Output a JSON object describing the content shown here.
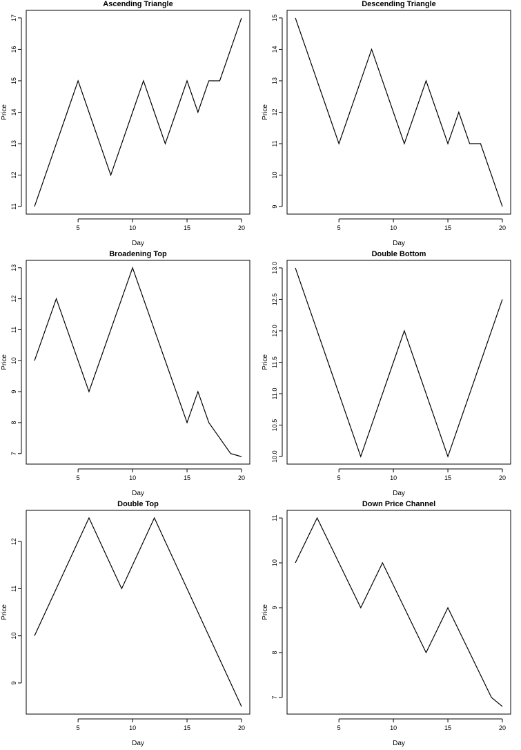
{
  "chart_data": [
    {
      "type": "line",
      "title": "Ascending Triangle",
      "xlabel": "Day",
      "ylabel": "Price",
      "x": [
        1,
        2,
        3,
        4,
        5,
        6,
        7,
        8,
        9,
        10,
        11,
        12,
        13,
        14,
        15,
        16,
        17,
        18,
        19,
        20
      ],
      "series": [
        {
          "values": [
            11,
            12,
            13,
            14,
            15,
            14,
            13,
            12,
            13,
            14,
            15,
            14,
            13,
            14,
            15,
            14,
            15,
            15,
            16,
            17
          ]
        }
      ],
      "xticks": [
        5,
        10,
        15,
        20
      ],
      "yticks": [
        11,
        12,
        13,
        14,
        15,
        16,
        17
      ],
      "xlim": [
        0.24,
        20.76
      ],
      "ylim": [
        10.76,
        17.24
      ],
      "grid": false,
      "color": "#000000"
    },
    {
      "type": "line",
      "title": "Descending Triangle",
      "xlabel": "Day",
      "ylabel": "Price",
      "x": [
        1,
        2,
        3,
        4,
        5,
        6,
        7,
        8,
        9,
        10,
        11,
        12,
        13,
        14,
        15,
        16,
        17,
        18,
        19,
        20
      ],
      "series": [
        {
          "values": [
            15,
            14,
            13,
            12,
            11,
            12,
            13,
            14,
            13,
            12,
            11,
            12,
            13,
            12,
            11,
            12,
            11,
            11,
            10,
            9
          ]
        }
      ],
      "xticks": [
        5,
        10,
        15,
        20
      ],
      "yticks": [
        9,
        10,
        11,
        12,
        13,
        14,
        15
      ],
      "xlim": [
        0.24,
        20.76
      ],
      "ylim": [
        8.76,
        15.24
      ],
      "grid": false,
      "color": "#000000"
    },
    {
      "type": "line",
      "title": "Broadening Top",
      "xlabel": "Day",
      "ylabel": "Price",
      "x": [
        1,
        2,
        3,
        4,
        5,
        6,
        7,
        8,
        9,
        10,
        11,
        12,
        13,
        14,
        15,
        16,
        17,
        18,
        19,
        20
      ],
      "series": [
        {
          "values": [
            10,
            11,
            12,
            11,
            10,
            9,
            10,
            11,
            12,
            13,
            12,
            11,
            10,
            9,
            8,
            9,
            8,
            7.5,
            7,
            6.9
          ]
        }
      ],
      "xticks": [
        5,
        10,
        15,
        20
      ],
      "yticks": [
        7,
        8,
        9,
        10,
        11,
        12,
        13
      ],
      "xlim": [
        0.24,
        20.76
      ],
      "ylim": [
        6.66,
        13.24
      ],
      "grid": false,
      "color": "#000000"
    },
    {
      "type": "line",
      "title": "Double Bottom",
      "xlabel": "Day",
      "ylabel": "Price",
      "x": [
        1,
        2,
        3,
        4,
        5,
        6,
        7,
        8,
        9,
        10,
        11,
        12,
        13,
        14,
        15,
        16,
        17,
        18,
        19,
        20
      ],
      "series": [
        {
          "values": [
            13,
            12.5,
            12,
            11.5,
            11,
            10.5,
            10,
            10.5,
            11,
            11.5,
            12,
            11.5,
            11,
            10.5,
            10,
            10.5,
            11,
            11.5,
            12,
            12.5
          ]
        }
      ],
      "xticks": [
        5,
        10,
        15,
        20
      ],
      "yticks": [
        10.0,
        10.5,
        11.0,
        11.5,
        12.0,
        12.5,
        13.0
      ],
      "ytick_labels": [
        "10.0",
        "10.5",
        "11.0",
        "11.5",
        "12.0",
        "12.5",
        "13.0"
      ],
      "xlim": [
        0.24,
        20.76
      ],
      "ylim": [
        9.88,
        13.12
      ],
      "grid": false,
      "color": "#000000"
    },
    {
      "type": "line",
      "title": "Double Top",
      "xlabel": "Day",
      "ylabel": "Price",
      "x": [
        1,
        2,
        3,
        4,
        5,
        6,
        7,
        8,
        9,
        10,
        11,
        12,
        13,
        14,
        15,
        16,
        17,
        18,
        19,
        20
      ],
      "series": [
        {
          "values": [
            10,
            10.5,
            11,
            11.5,
            12,
            12.5,
            12,
            11.5,
            11,
            11.5,
            12,
            12.5,
            12,
            11.5,
            11,
            10.5,
            10,
            9.5,
            9,
            8.5
          ]
        }
      ],
      "xticks": [
        5,
        10,
        15,
        20
      ],
      "yticks": [
        9,
        10,
        11,
        12
      ],
      "xlim": [
        0.24,
        20.76
      ],
      "ylim": [
        8.34,
        12.66
      ],
      "grid": false,
      "color": "#000000"
    },
    {
      "type": "line",
      "title": "Down Price Channel",
      "xlabel": "Day",
      "ylabel": "Price",
      "x": [
        1,
        2,
        3,
        4,
        5,
        6,
        7,
        8,
        9,
        10,
        11,
        12,
        13,
        14,
        15,
        16,
        17,
        18,
        19,
        20
      ],
      "series": [
        {
          "values": [
            10,
            10.5,
            11,
            10.5,
            10,
            9.5,
            9,
            9.5,
            10,
            9.5,
            9,
            8.5,
            8,
            8.5,
            9,
            8.5,
            8,
            7.5,
            7,
            6.8
          ]
        }
      ],
      "xticks": [
        5,
        10,
        15,
        20
      ],
      "yticks": [
        7,
        8,
        9,
        10,
        11
      ],
      "xlim": [
        0.24,
        20.76
      ],
      "ylim": [
        6.63,
        11.17
      ],
      "grid": false,
      "color": "#000000"
    }
  ]
}
